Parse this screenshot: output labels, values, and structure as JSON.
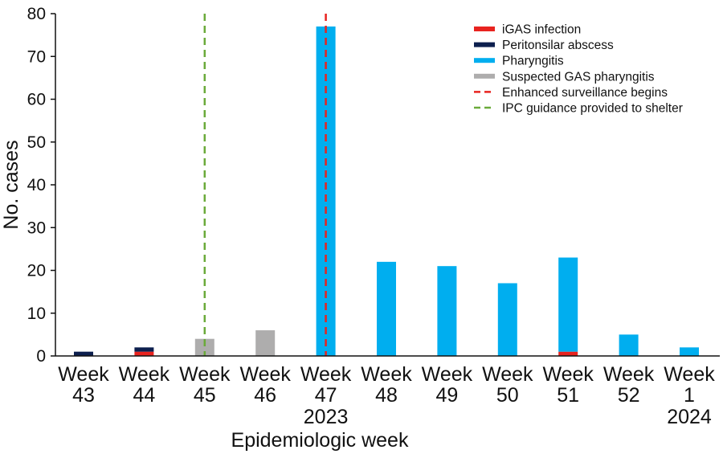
{
  "chart_data": {
    "type": "bar",
    "stacked": true,
    "categories": [
      "Week 43",
      "Week 44",
      "Week 45",
      "Week 46",
      "Week 47",
      "Week 48",
      "Week 49",
      "Week 50",
      "Week 51",
      "Week 52",
      "Week 1"
    ],
    "category_lines": [
      [
        "Week",
        "43"
      ],
      [
        "Week",
        "44"
      ],
      [
        "Week",
        "45"
      ],
      [
        "Week",
        "46"
      ],
      [
        "Week",
        "47"
      ],
      [
        "Week",
        "48"
      ],
      [
        "Week",
        "49"
      ],
      [
        "Week",
        "50"
      ],
      [
        "Week",
        "51"
      ],
      [
        "Week",
        "52"
      ],
      [
        "Week",
        "1"
      ]
    ],
    "year_labels": [
      {
        "category": "Week 47",
        "label": "2023"
      },
      {
        "category": "Week 1",
        "label": "2024"
      }
    ],
    "series": [
      {
        "name": "iGAS infection",
        "color": "#e8231f",
        "values": [
          0,
          1,
          0,
          0,
          0,
          0,
          0,
          0,
          1,
          0,
          0
        ]
      },
      {
        "name": "Peritonsilar abscess",
        "color": "#0d1f4e",
        "values": [
          1,
          1,
          0,
          0,
          0,
          0,
          0,
          0,
          0,
          0,
          0
        ]
      },
      {
        "name": "Pharyngitis",
        "color": "#00aeef",
        "values": [
          0,
          0,
          0,
          0,
          77,
          22,
          21,
          17,
          22,
          5,
          2
        ]
      },
      {
        "name": "Suspected GAS pharyngitis",
        "color": "#aeadad",
        "values": [
          0,
          0,
          4,
          6,
          0,
          0,
          0,
          0,
          0,
          0,
          0
        ]
      }
    ],
    "reference_lines": [
      {
        "name": "Enhanced surveillance begins",
        "category": "Week 47",
        "color": "#e8231f",
        "style": "dashed"
      },
      {
        "name": "IPC guidance provided to shelter",
        "category": "Week 45",
        "color": "#6aaa3a",
        "style": "dashed"
      }
    ],
    "xlabel": "Epidemiologic week",
    "ylabel": "No. cases",
    "ylim": [
      0,
      80
    ],
    "yticks": [
      0,
      10,
      20,
      30,
      40,
      50,
      60,
      70,
      80
    ],
    "grid": false,
    "legend_position": "top-right"
  }
}
